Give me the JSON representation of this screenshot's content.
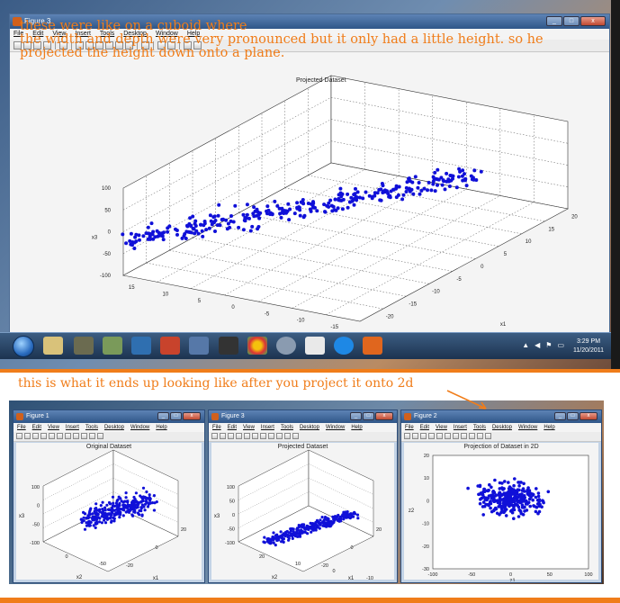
{
  "top_window": {
    "title": "Figure 3",
    "menu": [
      "File",
      "Edit",
      "View",
      "Insert",
      "Tools",
      "Desktop",
      "Window",
      "Help"
    ],
    "plot_title": "Projected Dataset",
    "axis_labels": {
      "x": "x2",
      "y": "x1",
      "z": "x3"
    },
    "z_ticks": [
      "100",
      "50",
      "0",
      "-50",
      "-100"
    ],
    "x2_ticks": [
      "15",
      "10",
      "5",
      "0",
      "-5",
      "-10",
      "-15"
    ],
    "x1_ticks": [
      "20",
      "15",
      "10",
      "5",
      "0",
      "-5",
      "-10",
      "-15",
      "-20"
    ]
  },
  "annotation_top": {
    "line1": "these were like on a cuboid where",
    "line2": "the width and depth were very pronounced but it only had a little height. so he",
    "line3": "projected the height down onto a plane."
  },
  "taskbar": {
    "time": "3:29 PM",
    "date": "11/20/2011"
  },
  "annotation_bottom": "this is what it ends up looking like after you project it onto 2d",
  "small_windows": [
    {
      "title": "Figure 1",
      "plot_title": "Original Dataset",
      "z_label": "x3",
      "x_label": "x2",
      "y_label": "x1",
      "z_ticks": [
        "100",
        "0",
        "-50",
        "-100"
      ],
      "x_ticks": [
        "0",
        "-50"
      ],
      "y_ticks": [
        "20",
        "0",
        "-20"
      ]
    },
    {
      "title": "Figure 3",
      "plot_title": "Projected Dataset",
      "z_label": "x3",
      "x_label": "x2",
      "y_label": "x1",
      "z_ticks": [
        "100",
        "50",
        "0",
        "-50",
        "-100"
      ],
      "x_ticks": [
        "20",
        "10",
        "0",
        "-10"
      ],
      "y_ticks": [
        "20",
        "0",
        "-20"
      ]
    },
    {
      "title": "Figure 2",
      "plot_title": "Projection of Dataset in 2D",
      "x_label": "z1",
      "y_label": "z2",
      "y_ticks": [
        "20",
        "10",
        "0",
        "-10",
        "-20",
        "-30"
      ],
      "x_ticks": [
        "-100",
        "-50",
        "0",
        "50",
        "100"
      ]
    }
  ],
  "colors": {
    "annotation": "#f07d1a",
    "points": "#1010d8"
  }
}
